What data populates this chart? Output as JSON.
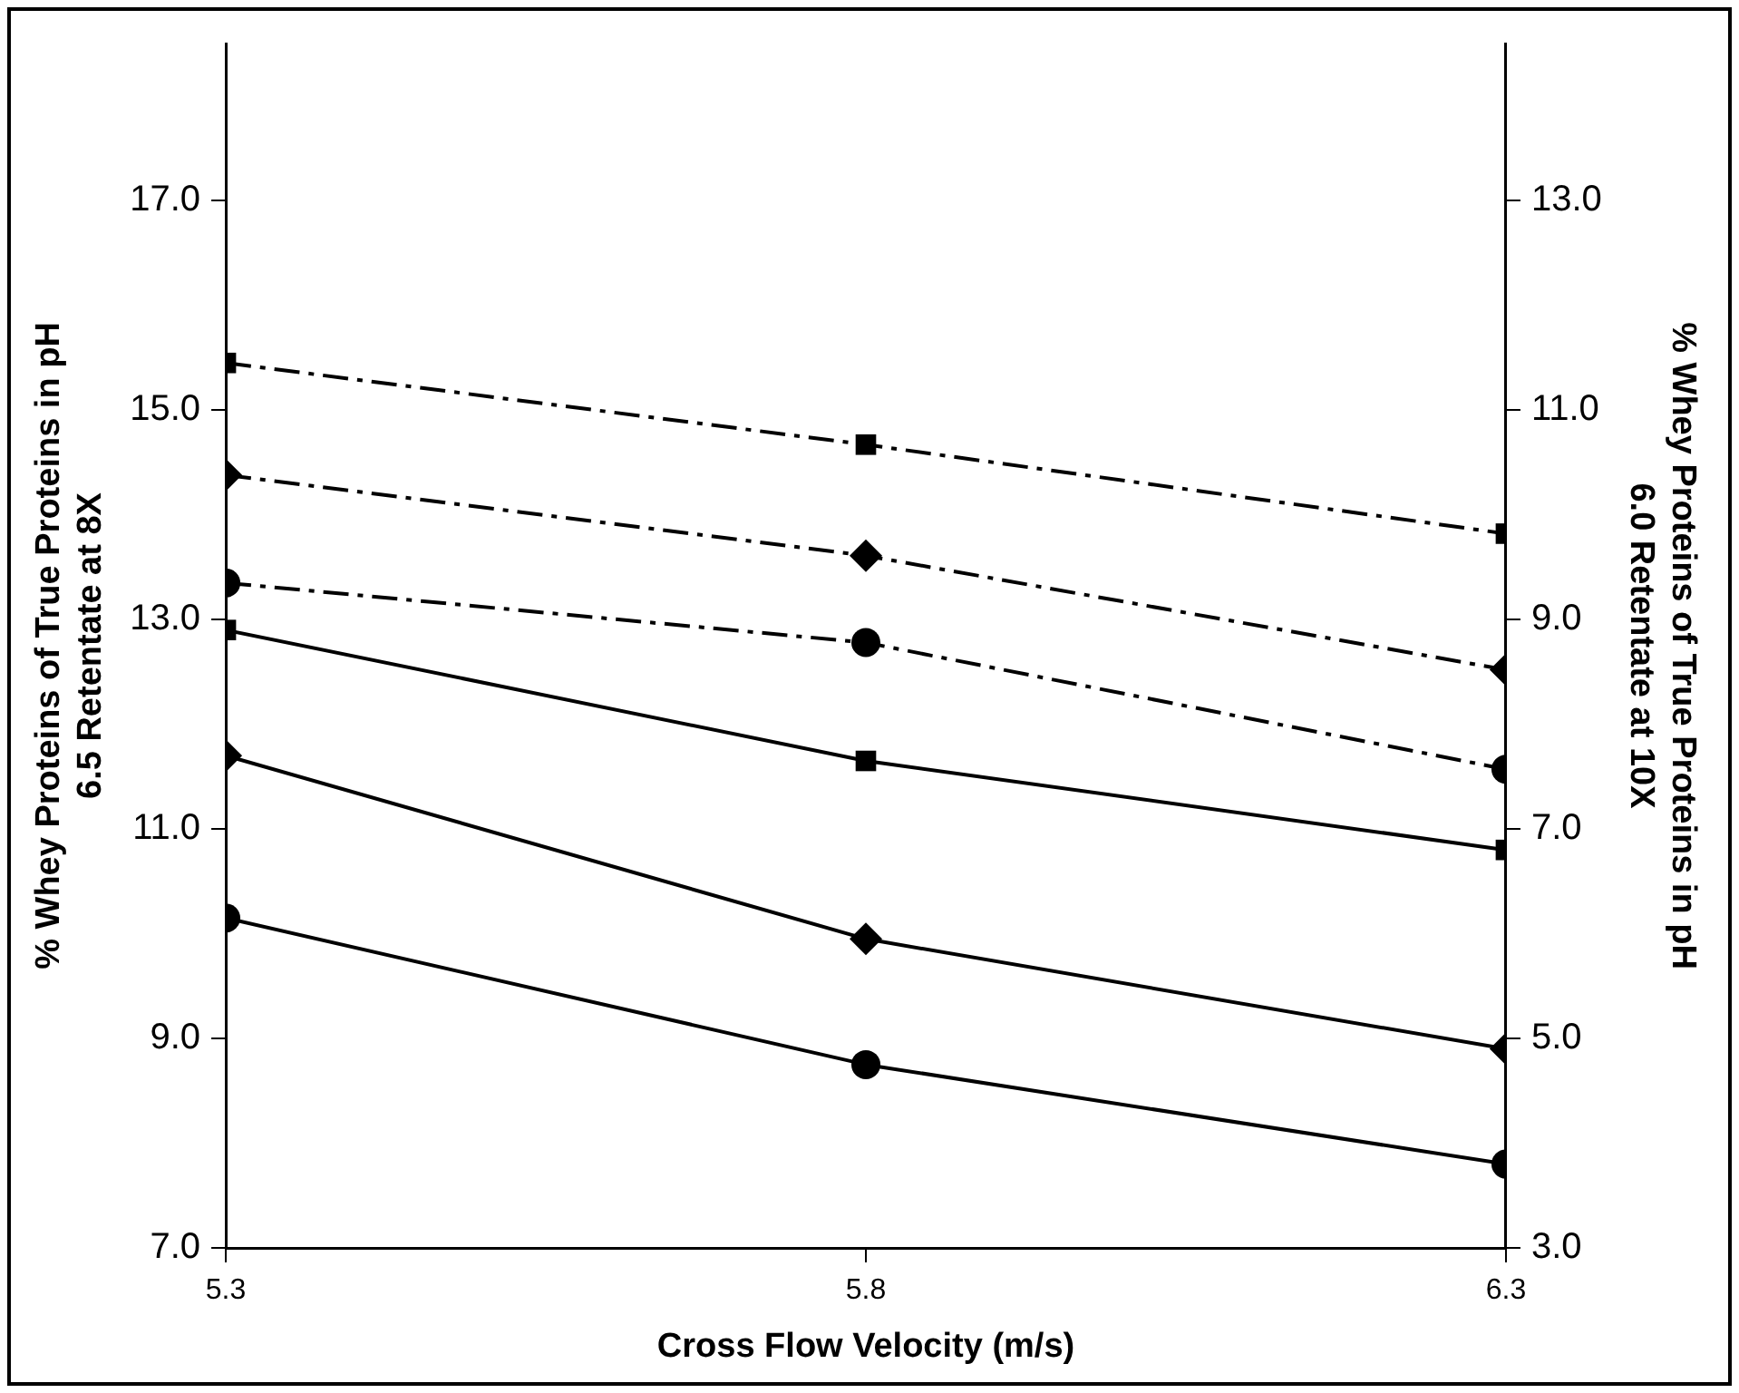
{
  "chart_data": {
    "type": "line",
    "xlabel": "Cross Flow Velocity (m/s)",
    "ylabel": "% Whey Proteins of True Proteins in pH 6.5 Retentate at 8X",
    "y2label": "% Whey Proteins of True Proteins in pH 6.0 Retentate at 10X",
    "x": [
      5.3,
      5.8,
      6.3
    ],
    "xlim": [
      5.3,
      6.3
    ],
    "xticks": [
      5.3,
      5.8,
      6.3
    ],
    "ylim": [
      7,
      18.5
    ],
    "yticks": [
      {
        "value": 7,
        "label": "7.0"
      },
      {
        "value": 9,
        "label": "9.0"
      },
      {
        "value": 11,
        "label": "11.0"
      },
      {
        "value": 13,
        "label": "13.0"
      },
      {
        "value": 15,
        "label": "15.0"
      },
      {
        "value": 17,
        "label": "17.0"
      }
    ],
    "y2lim": [
      3,
      14.5
    ],
    "y2ticks": [
      {
        "value": 3,
        "label": "3.0"
      },
      {
        "value": 5,
        "label": "5.0"
      },
      {
        "value": 7,
        "label": "7.0"
      },
      {
        "value": 9,
        "label": "9.0"
      },
      {
        "value": 11,
        "label": "11.0"
      },
      {
        "value": 13,
        "label": "13.0"
      }
    ],
    "grid": false,
    "legend": false,
    "series": [
      {
        "color": "#000000",
        "marker": "square",
        "line_style": "solid",
        "values": [
          12.9,
          11.65,
          10.8
        ]
      },
      {
        "color": "#000000",
        "marker": "diamond",
        "line_style": "solid",
        "values": [
          11.7,
          9.95,
          8.9
        ]
      },
      {
        "color": "#000000",
        "marker": "circle",
        "line_style": "solid",
        "values": [
          10.15,
          8.75,
          7.8
        ]
      },
      {
        "color": "#000000",
        "marker": "square",
        "line_style": "dashed",
        "axis": "y2",
        "values": [
          11.45,
          10.67,
          9.82
        ]
      },
      {
        "color": "#000000",
        "marker": "diamond",
        "line_style": "dashed",
        "axis": "y2",
        "values": [
          10.38,
          9.61,
          8.52
        ]
      },
      {
        "color": "#000000",
        "marker": "circle",
        "line_style": "dashed",
        "axis": "y2",
        "values": [
          9.35,
          8.78,
          7.57
        ]
      }
    ]
  }
}
